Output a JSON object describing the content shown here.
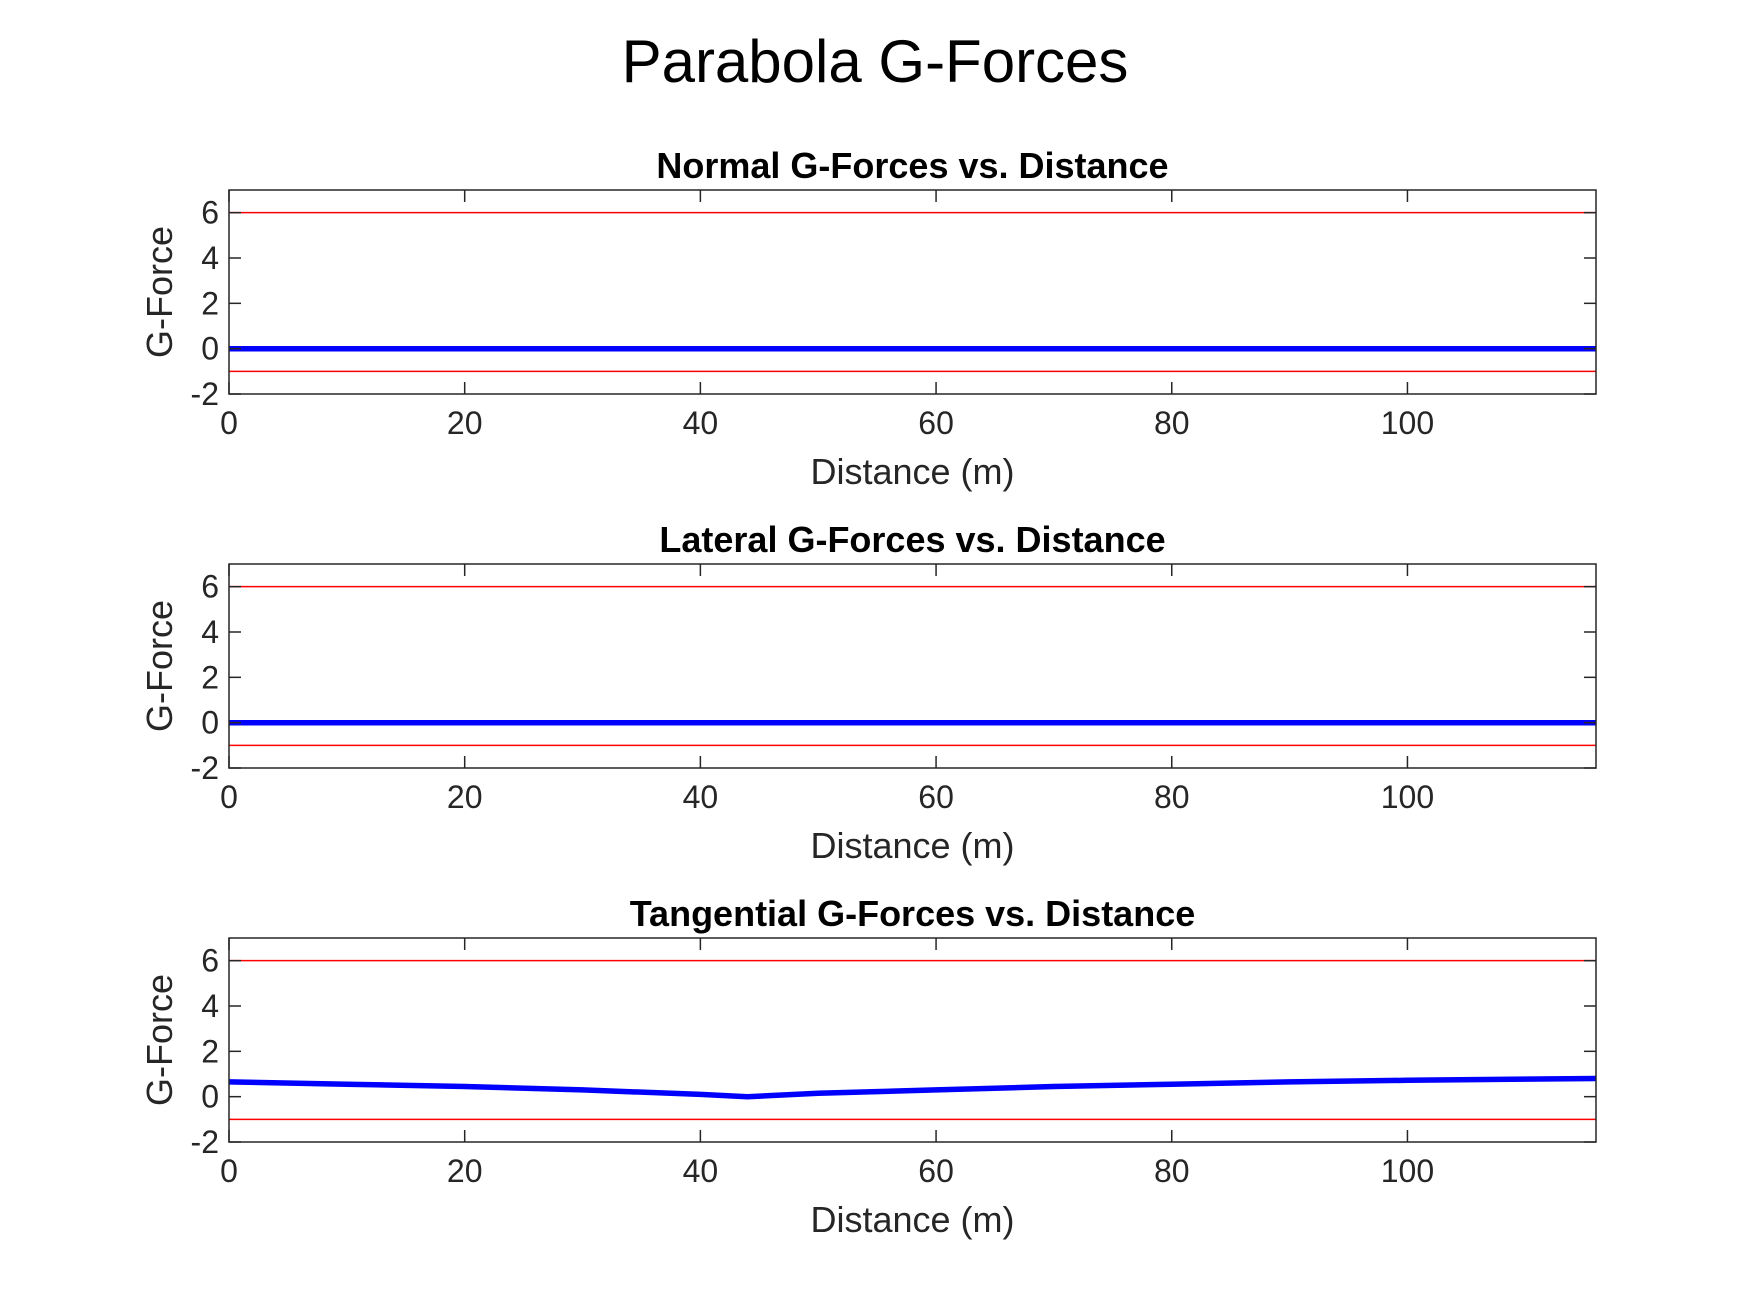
{
  "figure": {
    "title": "Parabola G-Forces"
  },
  "colors": {
    "series": "#0000ff",
    "limits": "#ff0000",
    "axes": "#262626"
  },
  "chart_data": [
    {
      "type": "line",
      "title": "Normal G-Forces vs. Distance",
      "xlabel": "Distance (m)",
      "ylabel": "G-Force",
      "xlim": [
        0,
        116
      ],
      "ylim": [
        -2,
        7
      ],
      "xticks": [
        0,
        20,
        40,
        60,
        80,
        100
      ],
      "yticks": [
        -2,
        0,
        2,
        4,
        6
      ],
      "limit_lines": [
        6,
        -1
      ],
      "grid": false,
      "series": [
        {
          "x": [
            0,
            116
          ],
          "y": [
            0,
            0
          ]
        }
      ]
    },
    {
      "type": "line",
      "title": "Lateral G-Forces vs. Distance",
      "xlabel": "Distance (m)",
      "ylabel": "G-Force",
      "xlim": [
        0,
        116
      ],
      "ylim": [
        -2,
        7
      ],
      "xticks": [
        0,
        20,
        40,
        60,
        80,
        100
      ],
      "yticks": [
        -2,
        0,
        2,
        4,
        6
      ],
      "limit_lines": [
        6,
        -1
      ],
      "grid": false,
      "series": [
        {
          "x": [
            0,
            116
          ],
          "y": [
            0,
            0
          ]
        }
      ]
    },
    {
      "type": "line",
      "title": "Tangential G-Forces vs. Distance",
      "xlabel": "Distance (m)",
      "ylabel": "G-Force",
      "xlim": [
        0,
        116
      ],
      "ylim": [
        -2,
        7
      ],
      "xticks": [
        0,
        20,
        40,
        60,
        80,
        100
      ],
      "yticks": [
        -2,
        0,
        2,
        4,
        6
      ],
      "limit_lines": [
        6,
        -1
      ],
      "grid": false,
      "series": [
        {
          "x": [
            0,
            10,
            20,
            30,
            40,
            44,
            50,
            60,
            70,
            80,
            90,
            100,
            116
          ],
          "y": [
            0.65,
            0.55,
            0.45,
            0.3,
            0.1,
            0.0,
            0.15,
            0.3,
            0.45,
            0.55,
            0.65,
            0.72,
            0.8
          ]
        }
      ]
    }
  ]
}
